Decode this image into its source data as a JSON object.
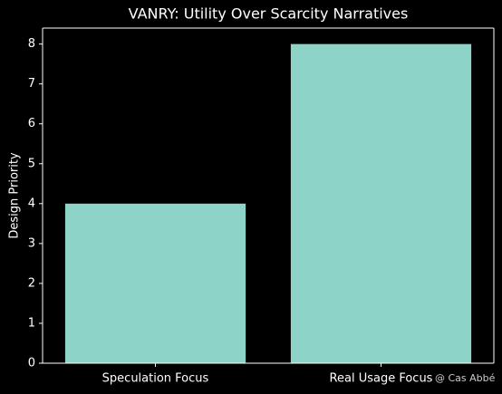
{
  "chart_data": {
    "type": "bar",
    "title": "VANRY: Utility Over Scarcity Narratives",
    "ylabel": "Design Priority",
    "categories": [
      "Speculation Focus",
      "Real Usage Focus"
    ],
    "values": [
      4,
      8
    ],
    "color": "#8dd3c7",
    "ylim": [
      0,
      8.4
    ],
    "yticks": [
      0,
      1,
      2,
      3,
      4,
      5,
      6,
      7,
      8
    ],
    "grid": false,
    "annotation": "@ Cas Abbé"
  }
}
